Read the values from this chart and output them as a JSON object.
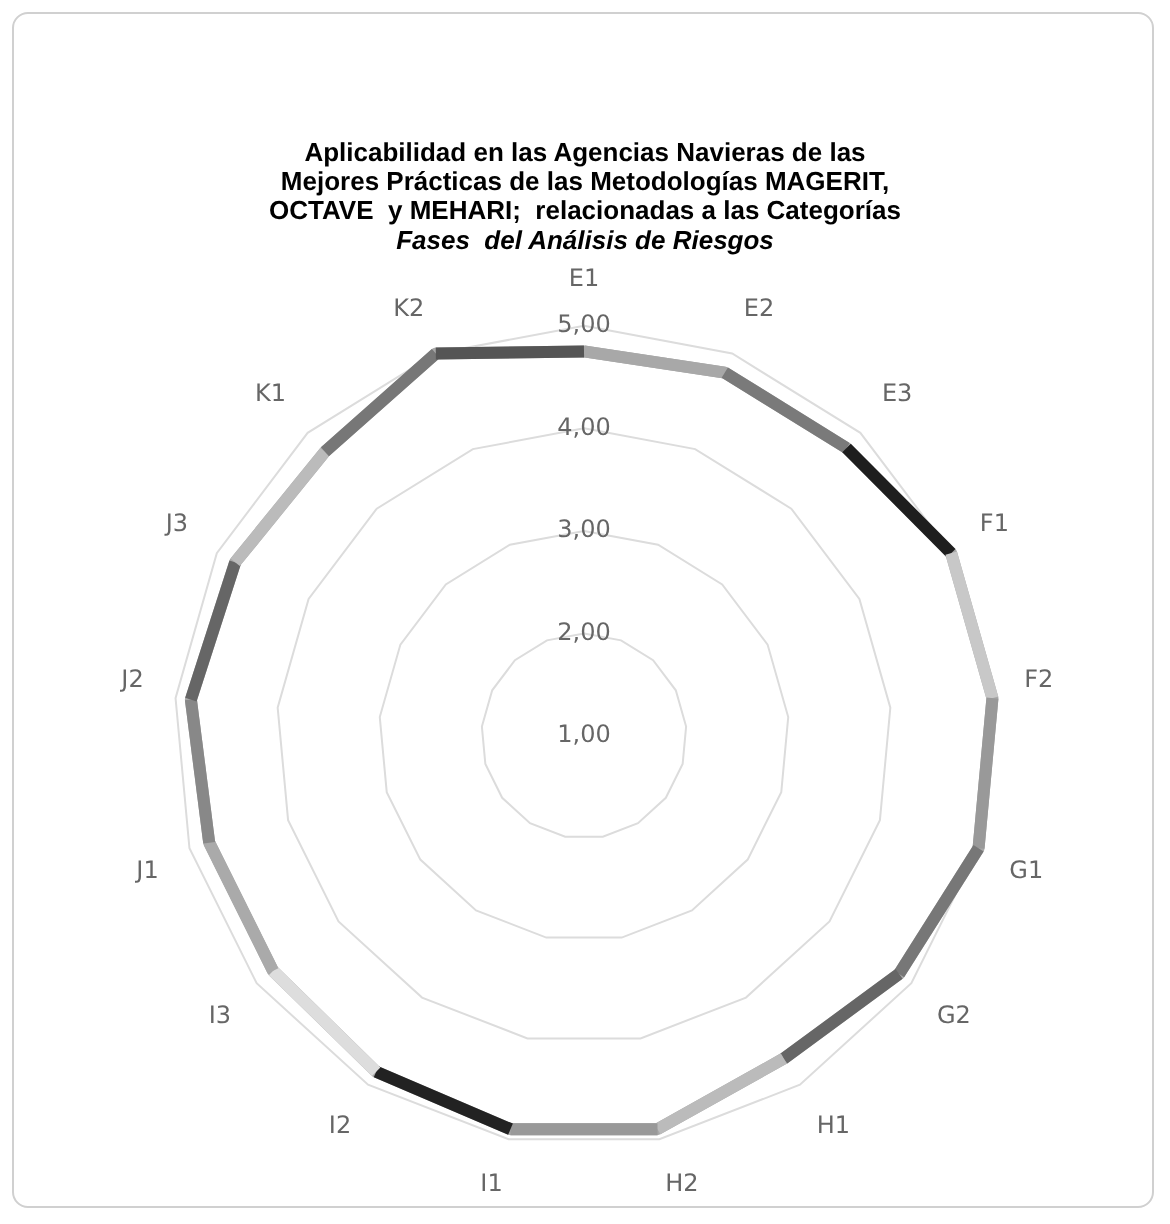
{
  "chart_data": {
    "type": "radar",
    "title": "Aplicabilidad en las Agencias Navieras de las\nMejores Prácticas de las Metodologías MAGERIT,\nOCTAVE  y MEHARI;  relacionadas a las Categorías",
    "subtitle": "Fases  del Análisis de Riesgos",
    "categories": [
      "E1",
      "E2",
      "E3",
      "F1",
      "F2",
      "G1",
      "G2",
      "H1",
      "H2",
      "I1",
      "I2",
      "I3",
      "J1",
      "J2",
      "J3",
      "K1",
      "K2"
    ],
    "series": [
      {
        "values": [
          4.75,
          4.8,
          4.8,
          5,
          5,
          5,
          4.85,
          4.7,
          4.9,
          4.9,
          4.85,
          4.8,
          4.8,
          4.85,
          4.8,
          4.75,
          5
        ],
        "colors": [
          "#a8a8a8",
          "#7a7a7a",
          "#1e1e1e",
          "#c8c8c8",
          "#999999",
          "#777777",
          "#666666",
          "#bbbbbb",
          "#999999",
          "#222222",
          "#dddddd",
          "#aaaaaa",
          "#888888",
          "#666666",
          "#bbbbbb",
          "#777777",
          "#555555"
        ]
      }
    ],
    "ylim": [
      1,
      5
    ],
    "yticks": [
      {
        "value": 1,
        "label": "1,00"
      },
      {
        "value": 2,
        "label": "2,00"
      },
      {
        "value": 3,
        "label": "3,00"
      },
      {
        "value": 4,
        "label": "4,00"
      },
      {
        "value": 5,
        "label": "5,00"
      }
    ],
    "grid": true,
    "legend": false
  }
}
